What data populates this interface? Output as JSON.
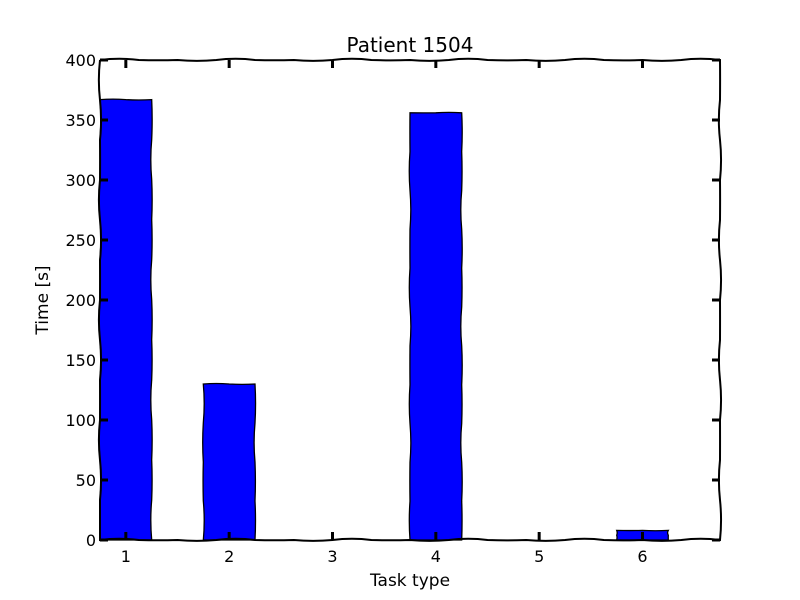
{
  "chart_data": {
    "type": "bar",
    "title": "Patient 1504",
    "xlabel": "Task type",
    "ylabel": "Time [s]",
    "categories": [
      "1",
      "2",
      "3",
      "4",
      "5",
      "6"
    ],
    "x_ticks": [
      "1",
      "2",
      "3",
      "4",
      "5",
      "6"
    ],
    "values": [
      367,
      130,
      0,
      356,
      0,
      8
    ],
    "ylim": [
      0,
      400
    ],
    "y_ticks": [
      "0",
      "50",
      "100",
      "150",
      "200",
      "250",
      "300",
      "350",
      "400"
    ],
    "grid": false,
    "legend": "none",
    "colors": {
      "bar": "#0000ff",
      "edge": "#000000"
    }
  }
}
